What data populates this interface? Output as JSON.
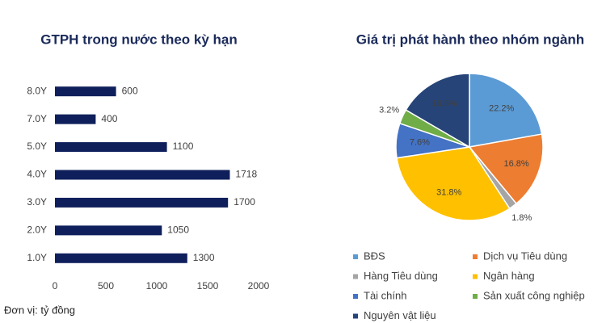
{
  "chart_data": [
    {
      "type": "hbar",
      "title": "GTPH trong nước theo kỳ hạn",
      "categories": [
        "8.0Y",
        "7.0Y",
        "5.0Y",
        "4.0Y",
        "3.0Y",
        "2.0Y",
        "1.0Y"
      ],
      "values": [
        600,
        400,
        1100,
        1718,
        1700,
        1050,
        1300
      ],
      "color": "#0e1f5b",
      "xlim": [
        0,
        2000
      ],
      "xticks": [
        0,
        500,
        1000,
        1500,
        2000
      ],
      "note": "Đơn vị: tỷ đồng"
    },
    {
      "type": "pie",
      "title": "Giá trị phát hành theo nhóm ngành",
      "categories": [
        "BĐS",
        "Dịch vụ Tiêu dùng",
        "Hàng Tiêu dùng",
        "Ngân hàng",
        "Tài chính",
        "Sản xuất công nghiệp",
        "Nguyên vật liệu"
      ],
      "values": [
        22.2,
        16.8,
        1.8,
        31.8,
        7.6,
        3.2,
        16.6
      ],
      "value_labels": [
        "22.2%",
        "16.8%",
        "1.8%",
        "31.8%",
        "7.6%",
        "3.2%",
        "16.6%"
      ],
      "colors": [
        "#5b9bd5",
        "#ed7d31",
        "#a5a5a5",
        "#ffc000",
        "#4472c4",
        "#70ad47",
        "#264478"
      ]
    }
  ]
}
